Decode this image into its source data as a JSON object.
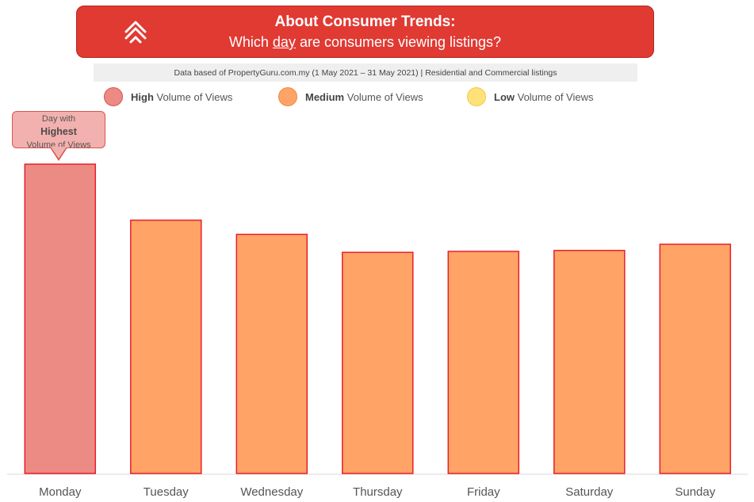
{
  "header": {
    "title": "About Consumer Trends:",
    "subtitle_before": "Which ",
    "subtitle_highlight": "day",
    "subtitle_after": " are consumers viewing listings?"
  },
  "source_note": "Data based of PropertyGuru.com.my (1 May 2021 – 31 May 2021) | Residential and Commercial listings",
  "legend": [
    {
      "strong": "High",
      "rest": " Volume of Views",
      "color": "#ec8a84",
      "border": "#d9534f"
    },
    {
      "strong": "Medium",
      "rest": " Volume of Views",
      "color": "#ffa366",
      "border": "#f08a3c"
    },
    {
      "strong": "Low",
      "rest": " Volume of Views",
      "color": "#ffe17a",
      "border": "#f5c842"
    }
  ],
  "callout": {
    "line1": "Day with",
    "line2": "Highest",
    "line3": "Volume of Views"
  },
  "colors": {
    "high": "#ec8a84",
    "medium": "#ffa366",
    "bar_border": "#e8202a",
    "axis": "#d9d9d9",
    "label": "#555555"
  },
  "chart_data": {
    "type": "bar",
    "categories": [
      "Monday",
      "Tuesday",
      "Wednesday",
      "Thursday",
      "Friday",
      "Saturday",
      "Sunday"
    ],
    "values": [
      100,
      81.9,
      77.3,
      71.5,
      71.8,
      72.1,
      74.1
    ],
    "levels": [
      "high",
      "medium",
      "medium",
      "medium",
      "medium",
      "medium",
      "medium"
    ],
    "ylim": [
      0,
      100
    ],
    "grid": false,
    "legend_position": "top"
  }
}
